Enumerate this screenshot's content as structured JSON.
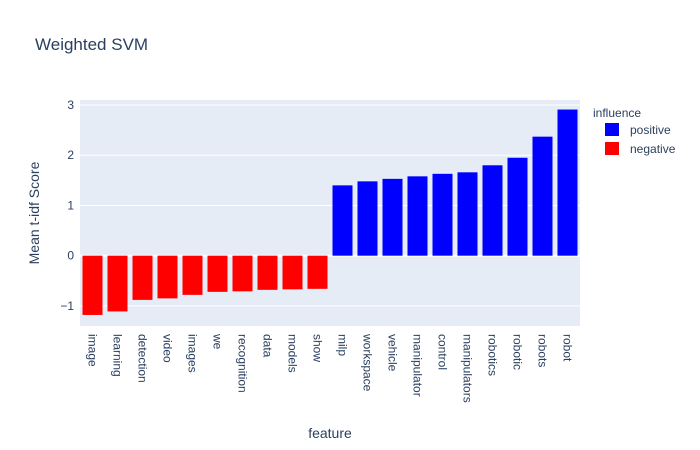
{
  "chart_data": {
    "type": "bar",
    "title": "Weighted SVM",
    "xlabel": "feature",
    "ylabel": "Mean t-idf Score",
    "ylim": [
      -1.4,
      3.1
    ],
    "yticks": [
      -1,
      0,
      1,
      2,
      3
    ],
    "grid": true,
    "legend": {
      "title": "influence",
      "placement": "top-right",
      "entries": [
        {
          "name": "positive",
          "color": "#0000ff"
        },
        {
          "name": "negative",
          "color": "#ff0000"
        }
      ]
    },
    "colors": {
      "positive": "#0000ff",
      "negative": "#ff0000",
      "plot_bg": "#e5ecf6"
    },
    "categories": [
      "image",
      "learning",
      "detection",
      "video",
      "images",
      "we",
      "recognition",
      "data",
      "models",
      "show",
      "milp",
      "workspace",
      "vehicle",
      "manipulator",
      "control",
      "manipulators",
      "robotics",
      "robotic",
      "robots",
      "robot"
    ],
    "values": [
      -1.18,
      -1.11,
      -0.88,
      -0.85,
      -0.78,
      -0.72,
      -0.71,
      -0.68,
      -0.67,
      -0.66,
      1.4,
      1.48,
      1.53,
      1.58,
      1.63,
      1.66,
      1.8,
      1.95,
      2.37,
      2.91
    ],
    "influence": [
      "negative",
      "negative",
      "negative",
      "negative",
      "negative",
      "negative",
      "negative",
      "negative",
      "negative",
      "negative",
      "positive",
      "positive",
      "positive",
      "positive",
      "positive",
      "positive",
      "positive",
      "positive",
      "positive",
      "positive"
    ]
  }
}
